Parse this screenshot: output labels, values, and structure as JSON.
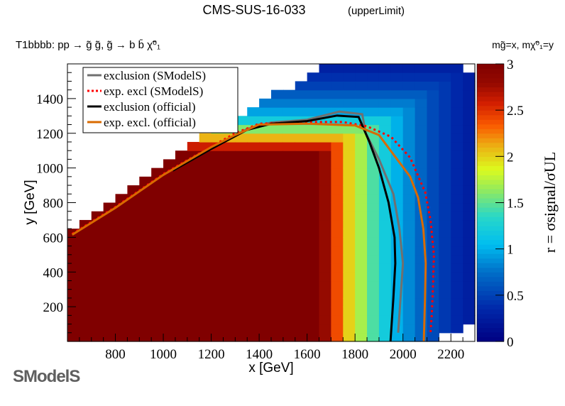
{
  "chart_data": {
    "type": "heatmap",
    "title": "CMS-SUS-16-033",
    "title_suffix": "(upperLimit)",
    "process": "T1bbbb: pp → g̃ g̃, g̃ → b b̄  χ̃⁰₁",
    "mass_note": "mg̃=x, mχ̃⁰₁=y",
    "xlabel": "x [GeV]",
    "ylabel": "y [GeV]",
    "zlabel": "r = σsignal/σUL",
    "xlim": [
      600,
      2300
    ],
    "ylim": [
      0,
      1600
    ],
    "zlim": [
      0,
      3
    ],
    "xticks": [
      800,
      1000,
      1200,
      1400,
      1600,
      1800,
      2000,
      2200
    ],
    "yticks": [
      200,
      400,
      600,
      800,
      1000,
      1200,
      1400
    ],
    "zticks": [
      "0",
      "0.5",
      "1",
      "1.5",
      "2",
      "2.5",
      "3"
    ],
    "heatmap": {
      "bin_size": [
        50,
        50
      ],
      "x_centers_start": 625,
      "y_centers_start": 25,
      "r_profile_vs_x": [
        3,
        3,
        3,
        3,
        3,
        3,
        3,
        3,
        3,
        3,
        3,
        3,
        3,
        3,
        3,
        3,
        3,
        3,
        3,
        3,
        3,
        2.8,
        2.4,
        2.0,
        1.7,
        1.45,
        1.2,
        1.0,
        0.85,
        0.7,
        0.55,
        0.45,
        0.35,
        0.28
      ],
      "r_cap_vs_y": [
        3,
        3,
        3,
        3,
        3,
        3,
        3,
        3,
        3,
        3,
        3,
        3,
        3,
        3,
        3,
        3,
        3,
        3,
        3,
        3,
        3,
        3,
        2.6,
        2.1,
        1.6,
        1.2,
        0.95,
        0.8,
        0.65,
        0.5,
        0.4,
        0.3
      ],
      "upper_boundary": [
        [
          600,
          600
        ],
        [
          1300,
          1300
        ],
        [
          1710,
          1600
        ]
      ],
      "empty_regions": [
        [
          2125,
          2300,
          0,
          50
        ],
        [
          2250,
          2300,
          0,
          100
        ],
        [
          2270,
          2300,
          1550,
          1600
        ]
      ]
    },
    "legend": {
      "placement": "top-left",
      "entries": [
        {
          "label": "exclusion (SModelS)",
          "color": "#707070",
          "style": "solid"
        },
        {
          "label": "exp. excl (SModelS)",
          "color": "#ff0000",
          "style": "dotted"
        },
        {
          "label": "exclusion (official)",
          "color": "#000000",
          "style": "solid"
        },
        {
          "label": "exp. excl. (official)",
          "color": "#d96a00",
          "style": "solid"
        }
      ]
    },
    "series": [
      {
        "name": "exclusion (SModelS)",
        "points": [
          [
            1040,
            990
          ],
          [
            1200,
            1115
          ],
          [
            1350,
            1225
          ],
          [
            1450,
            1262
          ],
          [
            1600,
            1278
          ],
          [
            1735,
            1325
          ],
          [
            1830,
            1310
          ],
          [
            1845,
            1200
          ],
          [
            1900,
            1050
          ],
          [
            1960,
            850
          ],
          [
            1985,
            650
          ],
          [
            2000,
            450
          ],
          [
            1990,
            250
          ],
          [
            1980,
            50
          ]
        ]
      },
      {
        "name": "exp. excl (SModelS)",
        "points": [
          [
            620,
            620
          ],
          [
            800,
            775
          ],
          [
            1000,
            965
          ],
          [
            1100,
            1045
          ],
          [
            1300,
            1200
          ],
          [
            1400,
            1255
          ],
          [
            1600,
            1265
          ],
          [
            1750,
            1265
          ],
          [
            1850,
            1240
          ],
          [
            1950,
            1180
          ],
          [
            2030,
            1060
          ],
          [
            2080,
            900
          ],
          [
            2093,
            860
          ],
          [
            2115,
            700
          ],
          [
            2129,
            500
          ],
          [
            2125,
            300
          ],
          [
            2120,
            150
          ],
          [
            2115,
            50
          ]
        ]
      },
      {
        "name": "exclusion (official)",
        "points": [
          [
            1040,
            985
          ],
          [
            1200,
            1110
          ],
          [
            1350,
            1220
          ],
          [
            1450,
            1255
          ],
          [
            1600,
            1270
          ],
          [
            1725,
            1302
          ],
          [
            1815,
            1294
          ],
          [
            1860,
            1150
          ],
          [
            1900,
            1000
          ],
          [
            1940,
            800
          ],
          [
            1965,
            600
          ],
          [
            1968,
            450
          ],
          [
            1960,
            250
          ],
          [
            1948,
            0
          ]
        ]
      },
      {
        "name": "exp. excl. (official)",
        "points": [
          [
            620,
            615
          ],
          [
            800,
            770
          ],
          [
            1000,
            960
          ],
          [
            1100,
            1040
          ],
          [
            1200,
            1120
          ],
          [
            1300,
            1190
          ],
          [
            1400,
            1250
          ],
          [
            1600,
            1255
          ],
          [
            1800,
            1245
          ],
          [
            1900,
            1190
          ],
          [
            1963,
            1073
          ],
          [
            2030,
            950
          ],
          [
            2063,
            830
          ],
          [
            2085,
            650
          ],
          [
            2095,
            450
          ],
          [
            2092,
            250
          ],
          [
            2087,
            0
          ]
        ]
      }
    ]
  },
  "logo": {
    "text": "SModelS"
  }
}
